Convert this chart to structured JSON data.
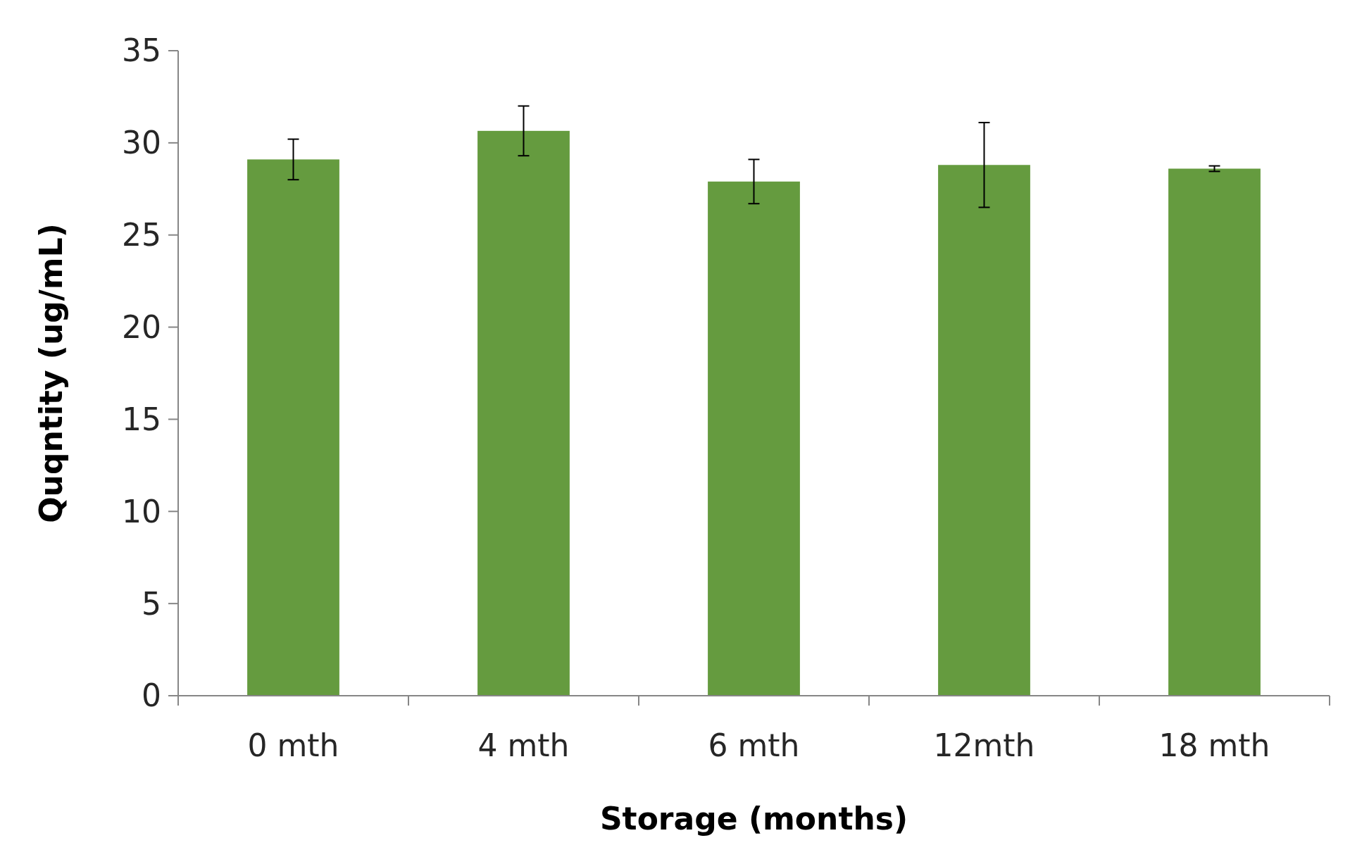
{
  "chart_data": {
    "type": "bar",
    "xlabel": "Storage (months)",
    "ylabel": "Quqntity (ug/mL)",
    "categories": [
      "0 mth",
      "4 mth",
      "6 mth",
      "12mth",
      "18 mth"
    ],
    "series": [
      {
        "color": "#659b3f",
        "values": [
          29.1,
          30.65,
          27.9,
          28.8,
          28.6
        ],
        "errors": [
          1.1,
          1.35,
          1.2,
          2.3,
          0.15
        ]
      }
    ],
    "ylim": [
      0,
      35
    ],
    "yticks": [
      0,
      5,
      10,
      15,
      20,
      25,
      30,
      35
    ],
    "grid": false
  }
}
